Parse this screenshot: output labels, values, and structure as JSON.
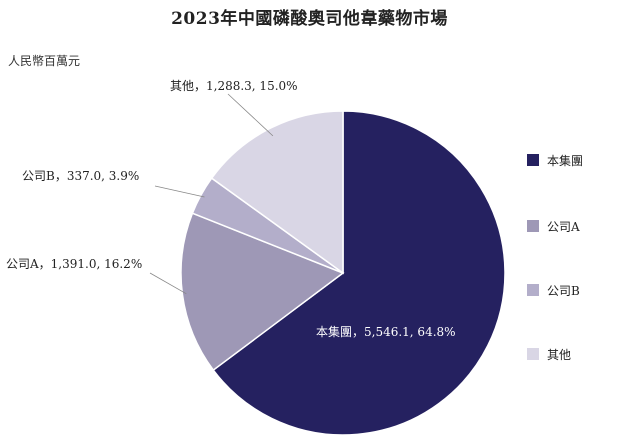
{
  "chart_data": {
    "type": "pie",
    "title": "2023年中國磷酸奧司他韋藥物市場",
    "unit": "人民幣百萬元",
    "slices": [
      {
        "name": "本集團",
        "value": 5546.1,
        "value_label": "5,546.1",
        "percent_label": "64.8%",
        "color": "#252160"
      },
      {
        "name": "公司A",
        "value": 1391.0,
        "value_label": "1,391.0",
        "percent_label": "16.2%",
        "color": "#9e98b6"
      },
      {
        "name": "公司B",
        "value": 337.0,
        "value_label": "337.0",
        "percent_label": "3.9%",
        "color": "#b3aeca"
      },
      {
        "name": "其他",
        "value": 1288.3,
        "value_label": "1,288.3",
        "percent_label": "15.0%",
        "color": "#d9d6e5"
      }
    ],
    "legend": [
      "本集團",
      "公司A",
      "公司B",
      "其他"
    ],
    "legend_position": "right",
    "label_separator": "，"
  }
}
